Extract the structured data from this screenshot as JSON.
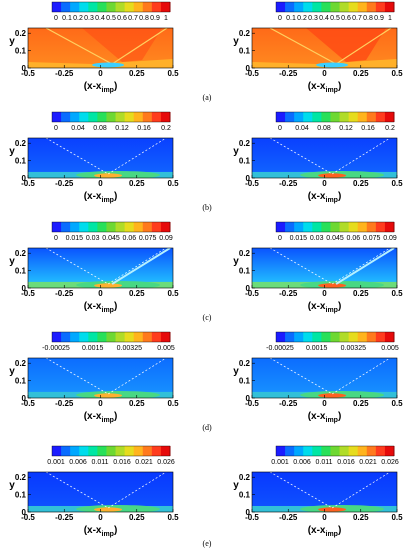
{
  "colorbar_colors": [
    "#1c1cff",
    "#0a6cff",
    "#00a8ff",
    "#00dcec",
    "#00e6a4",
    "#28e05a",
    "#6ed832",
    "#b0dc28",
    "#e6dc1e",
    "#ffb41e",
    "#ff7a1e",
    "#ff3c1e",
    "#e60a0a"
  ],
  "x_axis": {
    "ticks": [
      "-0.5",
      "-0.25",
      "0",
      "0.25",
      "0.5"
    ],
    "label_main": "(x-x",
    "label_sub": "imp",
    "label_end": ")"
  },
  "y_axis": {
    "label": "y",
    "ticks": [
      "0",
      "0.1",
      "0.2"
    ]
  },
  "rows": [
    {
      "caption": "(a)",
      "colorbar_ticks": [
        "0",
        "0.1",
        "0.2",
        "0.3",
        "0.4",
        "0.5",
        "0.6",
        "0.7",
        "0.8",
        "0.9",
        "1"
      ],
      "field": "mean"
    },
    {
      "caption": "(b)",
      "colorbar_ticks": [
        "0",
        "0.04",
        "0.08",
        "0.12",
        "0.16",
        "0.2"
      ],
      "field": "fluct"
    },
    {
      "caption": "(c)",
      "colorbar_ticks": [
        "0",
        "0.015",
        "0.03",
        "0.045",
        "0.06",
        "0.075",
        "0.09"
      ],
      "field": "fluct2"
    },
    {
      "caption": "(d)",
      "colorbar_ticks": [
        "-0.00025",
        "0.0015",
        "0.00325",
        "0.005"
      ],
      "field": "shear"
    },
    {
      "caption": "(e)",
      "colorbar_ticks": [
        "0.001",
        "0.006",
        "0.011",
        "0.016",
        "0.021",
        "0.026"
      ],
      "field": "fluct3"
    }
  ]
}
